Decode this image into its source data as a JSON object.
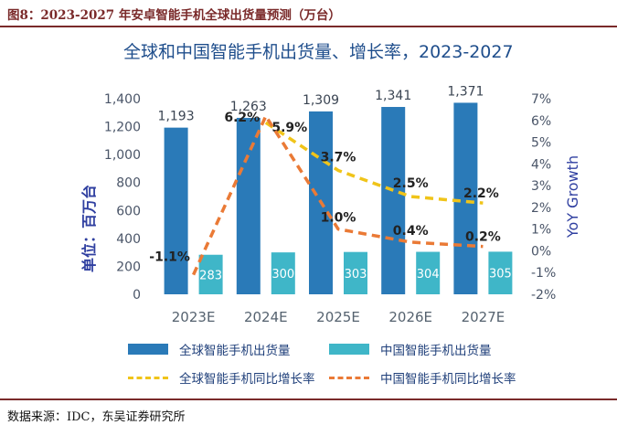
{
  "figure_caption": "图8：2023-2027 年安卓智能手机全球出货量预测（万台）",
  "source_note": "数据来源：IDC，东吴证券研究所",
  "chart_data": {
    "type": "bar",
    "title": "全球和中国智能手机出货量、增长率，2023-2027",
    "categories": [
      "2023E",
      "2024E",
      "2025E",
      "2026E",
      "2027E"
    ],
    "ylabel": "单位：百万台",
    "y2label": "YoY Growth",
    "ylim": [
      0,
      1400
    ],
    "yticks": [
      0,
      200,
      400,
      600,
      800,
      1000,
      1200,
      1400
    ],
    "ytick_labels": [
      "0",
      "200",
      "400",
      "600",
      "800",
      "1,000",
      "1,200",
      "1,400"
    ],
    "y2lim": [
      -2,
      7
    ],
    "y2ticks": [
      -2,
      -1,
      0,
      1,
      2,
      3,
      4,
      5,
      6,
      7
    ],
    "y2tick_labels": [
      "-2%",
      "-1%",
      "0%",
      "1%",
      "2%",
      "3%",
      "4%",
      "5%",
      "6%",
      "7%"
    ],
    "series": [
      {
        "name": "全球智能手机出货量",
        "kind": "bar",
        "axis": "left",
        "color": "#2a7ab8",
        "values": [
          1193,
          1263,
          1309,
          1341,
          1371
        ],
        "labels": [
          "1,193",
          "1,263",
          "1,309",
          "1,341",
          "1,371"
        ]
      },
      {
        "name": "中国智能手机出货量",
        "kind": "bar",
        "axis": "left",
        "color": "#3fb6c8",
        "values": [
          283,
          300,
          303,
          304,
          305
        ],
        "labels": [
          "283",
          "300",
          "303",
          "304",
          "305"
        ]
      },
      {
        "name": "全球智能手机同比增长率",
        "kind": "line",
        "axis": "right",
        "color": "#f0c419",
        "values": [
          null,
          5.9,
          3.7,
          2.5,
          2.2
        ],
        "labels": [
          null,
          "5.9%",
          "3.7%",
          "2.5%",
          "2.2%"
        ]
      },
      {
        "name": "中国智能手机同比增长率",
        "kind": "line",
        "axis": "right",
        "color": "#ea7a36",
        "values": [
          -1.1,
          6.2,
          1.0,
          0.4,
          0.2
        ],
        "labels": [
          "-1.1%",
          "6.2%",
          "1.0%",
          "0.4%",
          "0.2%"
        ]
      }
    ]
  }
}
